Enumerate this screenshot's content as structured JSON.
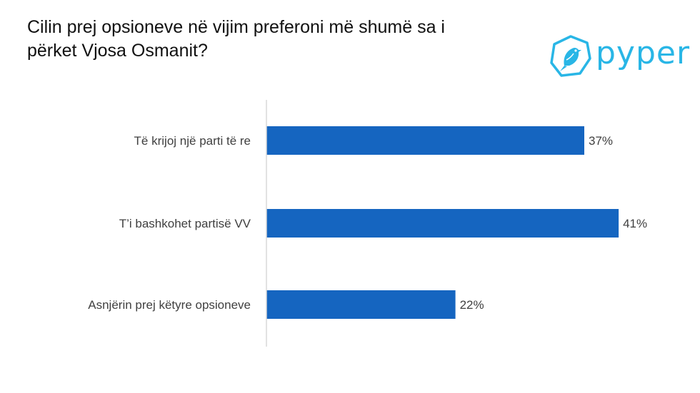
{
  "title": "Cilin prej opsioneve në vijim preferoni më shumë sa i\npërket Vjosa Osmanit?",
  "logo": {
    "text": "pyper",
    "icon": "bird-icon",
    "color": "#29b6e6"
  },
  "chart_data": {
    "type": "bar",
    "orientation": "horizontal",
    "title": "Cilin prej opsioneve në vijim preferoni më shumë sa i përket Vjosa Osmanit?",
    "categories": [
      "Të krijoj një parti të re",
      "T’i bashkohet partisë VV",
      "Asnjërin prej këtyre opsioneve"
    ],
    "values": [
      37,
      41,
      22
    ],
    "value_labels": [
      "37%",
      "41%",
      "22%"
    ],
    "unit": "%",
    "xlim": [
      0,
      45
    ],
    "bar_color": "#1565c0",
    "grid": false,
    "legend": "none"
  }
}
